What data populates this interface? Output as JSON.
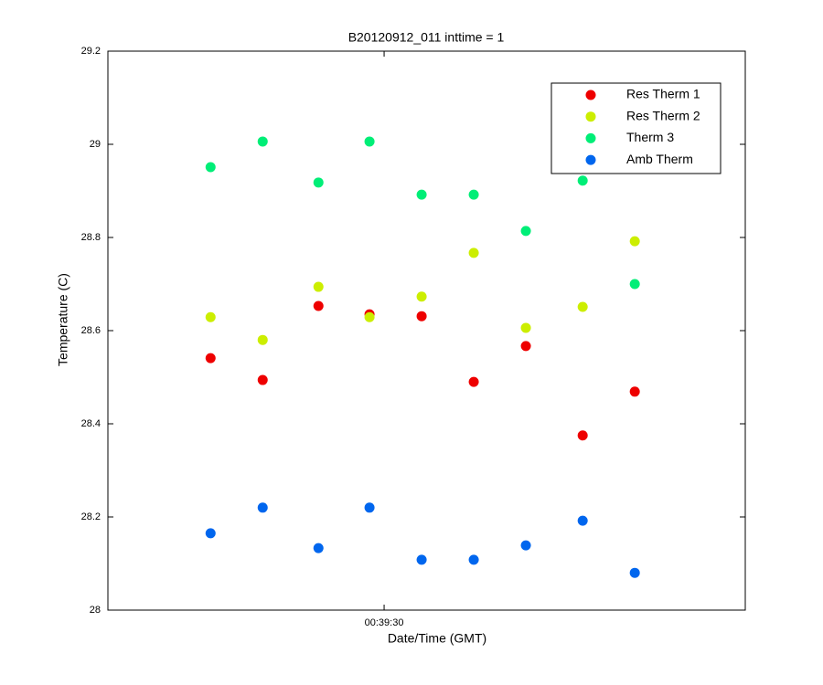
{
  "chart_data": {
    "type": "scatter",
    "title": "B20120912_011 inttime = 1",
    "xlabel": "Date/Time (GMT)",
    "ylabel": "Temperature (C)",
    "x": [
      2366.67,
      2367.67,
      2368.74,
      2369.72,
      2370.72,
      2371.72,
      2372.72,
      2373.81,
      2374.81
    ],
    "xlim": [
      2364.7,
      2376.93
    ],
    "xticks": [
      {
        "value": 2370,
        "label": "00:39:30"
      }
    ],
    "ylim": [
      28,
      29.2
    ],
    "yticks": [
      28,
      28.2,
      28.4,
      28.6,
      28.8,
      29,
      29.2
    ],
    "legend": "top-right",
    "series": [
      {
        "name": "Res Therm 1",
        "color": "#ee0000",
        "values": [
          28.541,
          28.494,
          28.653,
          28.635,
          28.631,
          28.49,
          28.567,
          28.375,
          28.469
        ]
      },
      {
        "name": "Res Therm 2",
        "color": "#ccee00",
        "values": [
          28.629,
          28.58,
          28.694,
          28.629,
          28.673,
          28.767,
          28.606,
          28.651,
          28.792
        ]
      },
      {
        "name": "Therm 3",
        "color": "#00ee77",
        "values": [
          28.951,
          29.006,
          28.918,
          29.006,
          28.892,
          28.892,
          28.814,
          28.922,
          28.7
        ]
      },
      {
        "name": "Amb Therm",
        "color": "#0066ee",
        "values": [
          28.165,
          28.22,
          28.133,
          28.22,
          28.108,
          28.108,
          28.139,
          28.192,
          28.08
        ]
      }
    ]
  }
}
